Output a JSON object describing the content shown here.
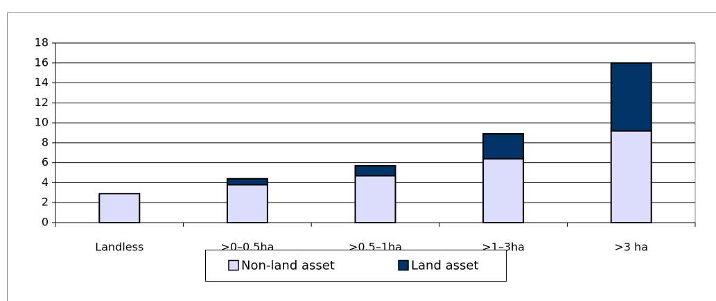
{
  "chart_data": {
    "type": "stacked_bar",
    "categories": [
      "Landless",
      ">0–0.5ha",
      ">0.5–1ha",
      ">1–3ha",
      ">3 ha"
    ],
    "series": [
      {
        "name": "Non-land asset",
        "color": "#dcdcfc",
        "values": [
          2.9,
          3.8,
          4.7,
          6.4,
          9.2
        ]
      },
      {
        "name": "Land asset",
        "color": "#003366",
        "values": [
          0,
          0.6,
          1.0,
          2.5,
          6.8
        ]
      }
    ],
    "ylim": [
      0,
      18
    ],
    "yticks": [
      0,
      2,
      4,
      6,
      8,
      10,
      12,
      14,
      16,
      18
    ],
    "grid": true,
    "legend": "bottom"
  }
}
